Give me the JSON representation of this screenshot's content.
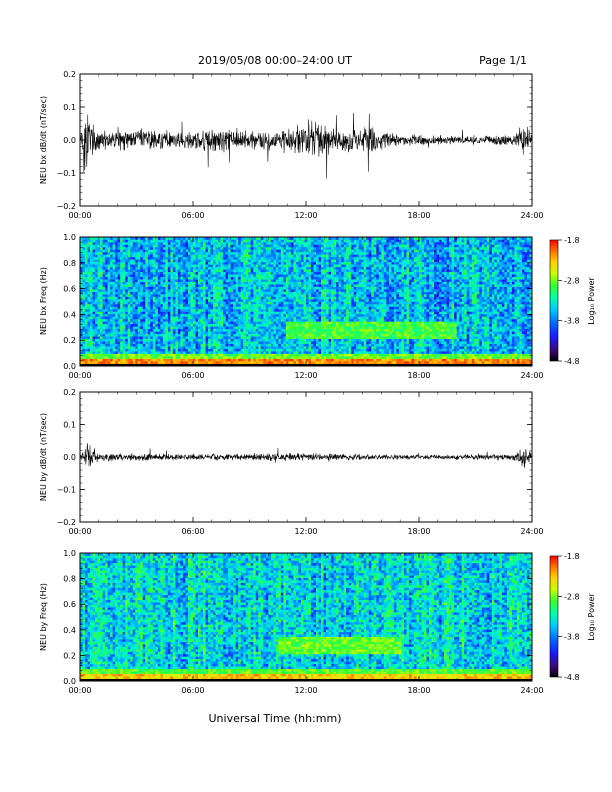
{
  "header": {
    "title": "2019/05/08  00:00–24:00 UT",
    "page": "Page 1/1"
  },
  "xaxis": {
    "ticks": [
      "00:00",
      "06:00",
      "12:00",
      "18:00",
      "24:00"
    ],
    "label": "Universal Time (hh:mm)",
    "range_hours": [
      0,
      24
    ]
  },
  "colorbar": {
    "label": "Log₁₀ Power",
    "ticks": [
      "-1.8",
      "-2.8",
      "-3.8",
      "-4.8"
    ],
    "range": [
      -4.8,
      -1.8
    ]
  },
  "colors": {
    "trace": "#000000",
    "colormap": [
      "#000000",
      "#3a0a6a",
      "#1a1aff",
      "#0070ff",
      "#00c8ff",
      "#00ffb0",
      "#30ff30",
      "#c8ff00",
      "#ffd000",
      "#ff7000",
      "#ff0000"
    ]
  },
  "chart_data": [
    {
      "type": "line",
      "ylabel": "NEU bx dB/dt (nT/sec)",
      "ylim": [
        -0.2,
        0.2
      ],
      "yticks": [
        "0.2",
        "0.1",
        "0.0",
        "−0.1",
        "−0.2"
      ],
      "xlim_hours": [
        0,
        24
      ],
      "envelope": [
        {
          "t": 0.0,
          "amp": 0.02
        },
        {
          "t": 0.3,
          "amp": 0.16
        },
        {
          "t": 0.6,
          "amp": 0.06
        },
        {
          "t": 1.5,
          "amp": 0.03
        },
        {
          "t": 3.5,
          "amp": 0.04
        },
        {
          "t": 5.0,
          "amp": 0.03
        },
        {
          "t": 7.0,
          "amp": 0.05
        },
        {
          "t": 9.0,
          "amp": 0.03
        },
        {
          "t": 11.0,
          "amp": 0.04
        },
        {
          "t": 12.3,
          "amp": 0.08
        },
        {
          "t": 13.5,
          "amp": 0.04
        },
        {
          "t": 15.5,
          "amp": 0.045
        },
        {
          "t": 17.0,
          "amp": 0.02
        },
        {
          "t": 20.0,
          "amp": 0.015
        },
        {
          "t": 23.0,
          "amp": 0.02
        },
        {
          "t": 23.7,
          "amp": 0.06
        },
        {
          "t": 24.0,
          "amp": 0.02
        }
      ]
    },
    {
      "type": "heatmap",
      "ylabel": "NEU bx Freq (Hz)",
      "ylim": [
        0.0,
        1.0
      ],
      "yticks": [
        "1.0",
        "0.8",
        "0.6",
        "0.4",
        "0.2",
        "0.0"
      ],
      "xlim_hours": [
        0,
        24
      ],
      "zlim": [
        -4.8,
        -1.8
      ],
      "features": [
        {
          "kind": "low-frequency band",
          "freq_max_hz": 0.05,
          "log_power": -2.2
        },
        {
          "kind": "broadband background",
          "log_power": -3.6
        },
        {
          "kind": "enhancement",
          "t_start_hours": 11.0,
          "t_end_hours": 20.0,
          "freq_hz": 0.28,
          "log_power": -3.0
        }
      ]
    },
    {
      "type": "line",
      "ylabel": "NEU by dB/dt (nT/sec)",
      "ylim": [
        -0.2,
        0.2
      ],
      "yticks": [
        "0.2",
        "0.1",
        "0.0",
        "−0.1",
        "−0.2"
      ],
      "xlim_hours": [
        0,
        24
      ],
      "envelope": [
        {
          "t": 0.0,
          "amp": 0.01
        },
        {
          "t": 0.4,
          "amp": 0.05
        },
        {
          "t": 1.0,
          "amp": 0.015
        },
        {
          "t": 6.0,
          "amp": 0.01
        },
        {
          "t": 12.0,
          "amp": 0.015
        },
        {
          "t": 18.0,
          "amp": 0.008
        },
        {
          "t": 23.0,
          "amp": 0.012
        },
        {
          "t": 23.6,
          "amp": 0.05
        },
        {
          "t": 24.0,
          "amp": 0.01
        }
      ]
    },
    {
      "type": "heatmap",
      "ylabel": "NEU by Freq (Hz)",
      "ylim": [
        0.0,
        1.0
      ],
      "yticks": [
        "1.0",
        "0.8",
        "0.6",
        "0.4",
        "0.2",
        "0.0"
      ],
      "xlim_hours": [
        0,
        24
      ],
      "zlim": [
        -4.8,
        -1.8
      ],
      "features": [
        {
          "kind": "low-frequency band",
          "freq_max_hz": 0.05,
          "log_power": -2.4
        },
        {
          "kind": "broadband background",
          "log_power": -3.5
        },
        {
          "kind": "enhancement",
          "t_start_hours": 10.5,
          "t_end_hours": 17.0,
          "freq_hz": 0.28,
          "log_power": -2.9
        }
      ]
    }
  ]
}
